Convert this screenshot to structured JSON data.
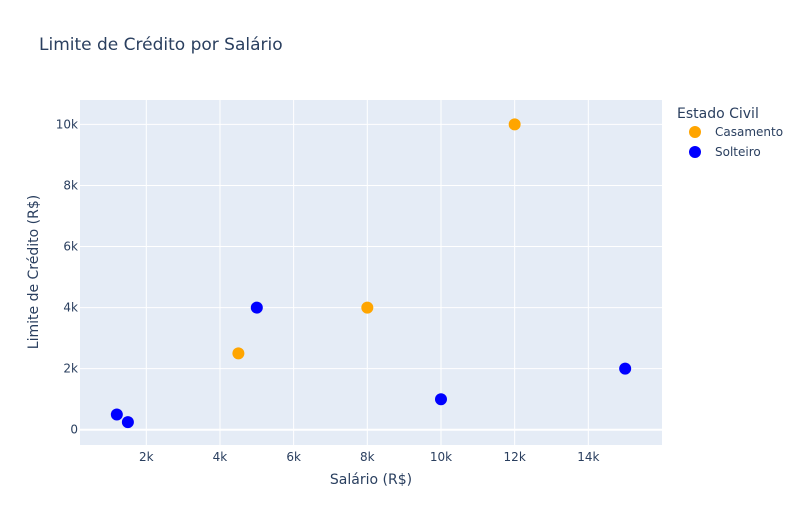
{
  "chart_data": {
    "type": "scatter",
    "title": "Limite de Crédito por Salário",
    "xlabel": "Salário (R$)",
    "ylabel": "Limite de Crédito (R$)",
    "xlim": [
      200,
      16000
    ],
    "ylim": [
      -500,
      10800
    ],
    "x_ticks": [
      {
        "value": 2000,
        "label": "2k"
      },
      {
        "value": 4000,
        "label": "4k"
      },
      {
        "value": 6000,
        "label": "6k"
      },
      {
        "value": 8000,
        "label": "8k"
      },
      {
        "value": 10000,
        "label": "10k"
      },
      {
        "value": 12000,
        "label": "12k"
      },
      {
        "value": 14000,
        "label": "14k"
      }
    ],
    "y_ticks": [
      {
        "value": 0,
        "label": "0"
      },
      {
        "value": 2000,
        "label": "2k"
      },
      {
        "value": 4000,
        "label": "4k"
      },
      {
        "value": 6000,
        "label": "6k"
      },
      {
        "value": 8000,
        "label": "8k"
      },
      {
        "value": 10000,
        "label": "10k"
      }
    ],
    "grid": true,
    "legend_title": "Estado Civil",
    "legend_position": "right",
    "series": [
      {
        "name": "Casamento",
        "color": "#FFA500",
        "points": [
          {
            "x": 4500,
            "y": 2500
          },
          {
            "x": 8000,
            "y": 4000
          },
          {
            "x": 12000,
            "y": 10000
          }
        ]
      },
      {
        "name": "Solteiro",
        "color": "#0000FF",
        "points": [
          {
            "x": 1200,
            "y": 500
          },
          {
            "x": 1500,
            "y": 250
          },
          {
            "x": 5000,
            "y": 4000
          },
          {
            "x": 10000,
            "y": 1000
          },
          {
            "x": 15000,
            "y": 2000
          }
        ]
      }
    ],
    "plot_background": "#E5ECF6",
    "gridline_color": "#ffffff"
  }
}
